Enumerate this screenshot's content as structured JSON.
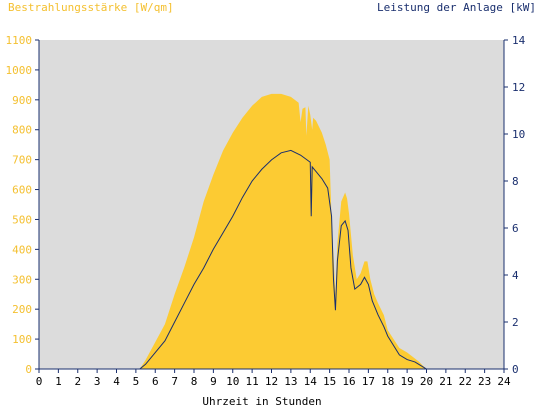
{
  "chart_data": {
    "type": "area",
    "title_left": "Bestrahlungsstärke [W/qm]",
    "title_right": "Leistung der Anlage [kW]",
    "xlabel": "Uhrzeit in Stunden",
    "xlim": [
      0,
      24
    ],
    "ylim_left": [
      0,
      1100
    ],
    "ylim_right": [
      0,
      14
    ],
    "x_ticks": [
      "0",
      "1",
      "2",
      "3",
      "4",
      "5",
      "6",
      "7",
      "8",
      "9",
      "10",
      "11",
      "12",
      "13",
      "14",
      "15",
      "16",
      "17",
      "18",
      "19",
      "20",
      "21",
      "22",
      "23",
      "24"
    ],
    "y_left_ticks": [
      "0",
      "100",
      "200",
      "300",
      "400",
      "500",
      "600",
      "700",
      "800",
      "900",
      "1000",
      "1100"
    ],
    "y_right_ticks": [
      "0",
      "2",
      "4",
      "6",
      "8",
      "10",
      "12",
      "14"
    ],
    "grid": false,
    "colors": {
      "plot_bg": "#dcdcdc",
      "irradiance_fill": "#fccb33",
      "power_line": "#1a2f6e",
      "left_axis_text": "#f4c030",
      "right_axis_text": "#1a2f6e"
    },
    "series": [
      {
        "name": "Bestrahlungsstärke",
        "axis": "left",
        "style": "area",
        "points": [
          [
            0,
            0
          ],
          [
            5.2,
            0
          ],
          [
            5.5,
            30
          ],
          [
            6,
            90
          ],
          [
            6.5,
            150
          ],
          [
            7,
            250
          ],
          [
            7.5,
            340
          ],
          [
            8,
            440
          ],
          [
            8.5,
            560
          ],
          [
            9,
            650
          ],
          [
            9.5,
            730
          ],
          [
            10,
            790
          ],
          [
            10.5,
            840
          ],
          [
            11,
            880
          ],
          [
            11.5,
            910
          ],
          [
            12,
            920
          ],
          [
            12.5,
            920
          ],
          [
            13,
            910
          ],
          [
            13.4,
            890
          ],
          [
            13.5,
            825
          ],
          [
            13.6,
            870
          ],
          [
            13.75,
            875
          ],
          [
            13.8,
            780
          ],
          [
            13.9,
            880
          ],
          [
            14,
            850
          ],
          [
            14.1,
            800
          ],
          [
            14.15,
            840
          ],
          [
            14.3,
            830
          ],
          [
            14.6,
            790
          ],
          [
            14.8,
            750
          ],
          [
            15,
            700
          ],
          [
            15.1,
            500
          ],
          [
            15.2,
            380
          ],
          [
            15.3,
            250
          ],
          [
            15.4,
            420
          ],
          [
            15.6,
            560
          ],
          [
            15.8,
            590
          ],
          [
            15.9,
            570
          ],
          [
            16,
            520
          ],
          [
            16.2,
            380
          ],
          [
            16.4,
            300
          ],
          [
            16.6,
            320
          ],
          [
            16.8,
            360
          ],
          [
            16.95,
            360
          ],
          [
            17.1,
            300
          ],
          [
            17.3,
            250
          ],
          [
            17.5,
            220
          ],
          [
            17.8,
            180
          ],
          [
            18,
            130
          ],
          [
            18.3,
            100
          ],
          [
            18.6,
            70
          ],
          [
            19,
            55
          ],
          [
            19.3,
            40
          ],
          [
            19.6,
            25
          ],
          [
            19.8,
            12
          ],
          [
            20,
            0
          ],
          [
            24,
            0
          ]
        ]
      },
      {
        "name": "Leistung",
        "axis": "right",
        "style": "line",
        "points": [
          [
            0,
            0
          ],
          [
            5.2,
            0
          ],
          [
            5.5,
            0.2
          ],
          [
            6,
            0.7
          ],
          [
            6.5,
            1.2
          ],
          [
            7,
            2
          ],
          [
            7.5,
            2.8
          ],
          [
            8,
            3.6
          ],
          [
            8.5,
            4.3
          ],
          [
            9,
            5.1
          ],
          [
            9.5,
            5.8
          ],
          [
            10,
            6.5
          ],
          [
            10.5,
            7.3
          ],
          [
            11,
            8
          ],
          [
            11.5,
            8.5
          ],
          [
            12,
            8.9
          ],
          [
            12.5,
            9.2
          ],
          [
            13,
            9.3
          ],
          [
            13.5,
            9.1
          ],
          [
            14,
            8.8
          ],
          [
            14.05,
            6.5
          ],
          [
            14.1,
            8.6
          ],
          [
            14.3,
            8.4
          ],
          [
            14.6,
            8.1
          ],
          [
            14.9,
            7.7
          ],
          [
            15.1,
            6.5
          ],
          [
            15.2,
            3.8
          ],
          [
            15.3,
            2.5
          ],
          [
            15.4,
            4.6
          ],
          [
            15.6,
            6.1
          ],
          [
            15.8,
            6.3
          ],
          [
            15.95,
            5.9
          ],
          [
            16.1,
            4.3
          ],
          [
            16.3,
            3.4
          ],
          [
            16.6,
            3.6
          ],
          [
            16.8,
            3.9
          ],
          [
            17,
            3.6
          ],
          [
            17.2,
            2.9
          ],
          [
            17.5,
            2.3
          ],
          [
            17.8,
            1.8
          ],
          [
            18,
            1.4
          ],
          [
            18.3,
            1
          ],
          [
            18.6,
            0.6
          ],
          [
            19,
            0.4
          ],
          [
            19.4,
            0.3
          ],
          [
            19.6,
            0.2
          ],
          [
            19.8,
            0.1
          ],
          [
            20,
            0
          ],
          [
            24,
            0
          ]
        ]
      }
    ]
  }
}
